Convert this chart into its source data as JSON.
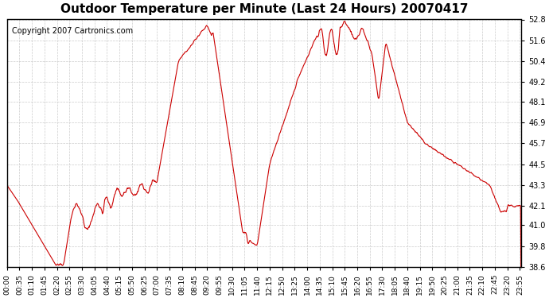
{
  "title": "Outdoor Temperature per Minute (Last 24 Hours) 20070417",
  "copyright": "Copyright 2007 Cartronics.com",
  "line_color": "#cc0000",
  "bg_color": "#ffffff",
  "grid_color": "#cccccc",
  "ylim": [
    38.6,
    52.8
  ],
  "yticks": [
    38.6,
    39.8,
    41.0,
    42.1,
    43.3,
    44.5,
    45.7,
    46.9,
    48.1,
    49.2,
    50.4,
    51.6,
    52.8
  ],
  "xlabel_interval": 35,
  "total_minutes": 1440
}
